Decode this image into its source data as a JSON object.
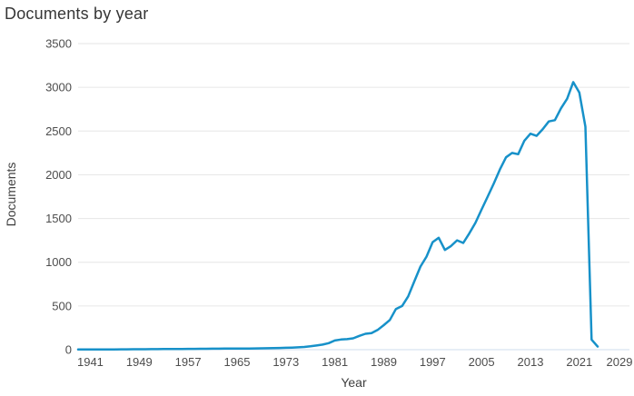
{
  "page": {
    "title": "Documents by year"
  },
  "colors": {
    "background": "#ffffff",
    "accent_line": "#1791c9",
    "gridline": "#e6e6e6",
    "baseline": "#cfdcec",
    "title_text": "#363636",
    "tick_text": "#4d4d4d",
    "axis_title_text": "#3f3f3f"
  },
  "chart_data": {
    "type": "line",
    "title": "Documents by year",
    "xlabel": "Year",
    "ylabel": "Documents",
    "legend": "none",
    "grid": "horizontal",
    "x_ticks": [
      1941,
      1949,
      1957,
      1965,
      1973,
      1981,
      1989,
      1997,
      2005,
      2013,
      2021,
      2029
    ],
    "y_ticks": [
      0,
      500,
      1000,
      1500,
      2000,
      2500,
      3000,
      3500
    ],
    "xlim": [
      1939,
      2029.2
    ],
    "ylim": [
      0,
      3500
    ],
    "series": [
      {
        "name": "Documents",
        "color": "#1791c9",
        "points": [
          [
            1939,
            2
          ],
          [
            1940,
            2
          ],
          [
            1941,
            3
          ],
          [
            1942,
            2
          ],
          [
            1943,
            2
          ],
          [
            1944,
            3
          ],
          [
            1945,
            3
          ],
          [
            1946,
            4
          ],
          [
            1947,
            4
          ],
          [
            1948,
            5
          ],
          [
            1949,
            5
          ],
          [
            1950,
            5
          ],
          [
            1951,
            6
          ],
          [
            1952,
            6
          ],
          [
            1953,
            7
          ],
          [
            1954,
            7
          ],
          [
            1955,
            8
          ],
          [
            1956,
            8
          ],
          [
            1957,
            9
          ],
          [
            1958,
            9
          ],
          [
            1959,
            10
          ],
          [
            1960,
            10
          ],
          [
            1961,
            11
          ],
          [
            1962,
            11
          ],
          [
            1963,
            12
          ],
          [
            1964,
            12
          ],
          [
            1965,
            13
          ],
          [
            1966,
            13
          ],
          [
            1967,
            14
          ],
          [
            1968,
            15
          ],
          [
            1969,
            16
          ],
          [
            1970,
            17
          ],
          [
            1971,
            18
          ],
          [
            1972,
            20
          ],
          [
            1973,
            22
          ],
          [
            1974,
            24
          ],
          [
            1975,
            27
          ],
          [
            1976,
            31
          ],
          [
            1977,
            38
          ],
          [
            1978,
            48
          ],
          [
            1979,
            58
          ],
          [
            1980,
            75
          ],
          [
            1981,
            105
          ],
          [
            1982,
            116
          ],
          [
            1983,
            120
          ],
          [
            1984,
            130
          ],
          [
            1985,
            158
          ],
          [
            1986,
            182
          ],
          [
            1987,
            190
          ],
          [
            1988,
            225
          ],
          [
            1989,
            280
          ],
          [
            1990,
            340
          ],
          [
            1991,
            465
          ],
          [
            1992,
            500
          ],
          [
            1993,
            610
          ],
          [
            1994,
            780
          ],
          [
            1995,
            950
          ],
          [
            1996,
            1065
          ],
          [
            1997,
            1230
          ],
          [
            1998,
            1280
          ],
          [
            1999,
            1140
          ],
          [
            2000,
            1185
          ],
          [
            2001,
            1250
          ],
          [
            2002,
            1220
          ],
          [
            2003,
            1330
          ],
          [
            2004,
            1450
          ],
          [
            2005,
            1600
          ],
          [
            2006,
            1750
          ],
          [
            2007,
            1900
          ],
          [
            2008,
            2060
          ],
          [
            2009,
            2200
          ],
          [
            2010,
            2250
          ],
          [
            2011,
            2235
          ],
          [
            2012,
            2390
          ],
          [
            2013,
            2470
          ],
          [
            2014,
            2445
          ],
          [
            2015,
            2520
          ],
          [
            2016,
            2610
          ],
          [
            2017,
            2625
          ],
          [
            2018,
            2760
          ],
          [
            2019,
            2870
          ],
          [
            2020,
            3060
          ],
          [
            2021,
            2940
          ],
          [
            2022,
            2550
          ],
          [
            2023,
            115
          ],
          [
            2024,
            35
          ]
        ]
      }
    ]
  }
}
